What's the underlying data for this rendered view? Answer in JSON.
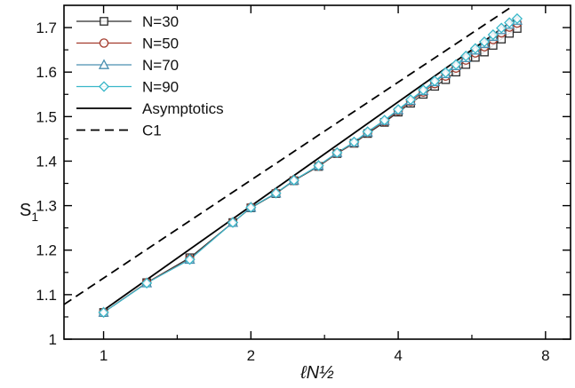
{
  "chart_data": {
    "type": "line",
    "x_scale": "log",
    "x_ticks_major": [
      1,
      2,
      4,
      8
    ],
    "x_ticks_minor": [
      1.414,
      2.828,
      5.657
    ],
    "x_tick_labels": [
      "1",
      "2",
      "4",
      "8"
    ],
    "xlim": [
      0.83,
      9.0
    ],
    "ylim": [
      1.0,
      1.75
    ],
    "y_ticks": [
      1.0,
      1.1,
      1.2,
      1.3,
      1.4,
      1.5,
      1.6,
      1.7
    ],
    "y_tick_labels": [
      "1",
      "1.1",
      "1.2",
      "1.3",
      "1.4",
      "1.5",
      "1.6",
      "1.7"
    ],
    "xlabel": "ℓN½",
    "ylabel_main": "S",
    "ylabel_sub": "1",
    "grid": false,
    "legend_position": "top-left",
    "x": [
      1.0,
      1.225,
      1.5,
      1.837,
      2.0,
      2.25,
      2.449,
      2.75,
      3.0,
      3.25,
      3.464,
      3.75,
      4.0,
      4.24,
      4.5,
      4.75,
      5.0,
      5.25,
      5.5,
      5.75,
      6.0,
      6.25,
      6.5,
      6.75,
      7.0
    ],
    "series": [
      {
        "name": "N=30",
        "marker": "square",
        "color": "#2b2b2b",
        "values": [
          1.06,
          1.127,
          1.183,
          1.262,
          1.295,
          1.327,
          1.356,
          1.388,
          1.417,
          1.44,
          1.462,
          1.487,
          1.51,
          1.53,
          1.55,
          1.568,
          1.583,
          1.6,
          1.617,
          1.633,
          1.645,
          1.66,
          1.674,
          1.687,
          1.698
        ]
      },
      {
        "name": "N=50",
        "marker": "circle",
        "color": "#a33a2c",
        "values": [
          1.06,
          1.127,
          1.18,
          1.262,
          1.296,
          1.328,
          1.357,
          1.389,
          1.418,
          1.441,
          1.464,
          1.489,
          1.513,
          1.534,
          1.555,
          1.574,
          1.591,
          1.609,
          1.627,
          1.643,
          1.657,
          1.673,
          1.688,
          1.701,
          1.71
        ]
      },
      {
        "name": "N=70",
        "marker": "triangle",
        "color": "#4a8fb0",
        "values": [
          1.06,
          1.126,
          1.179,
          1.262,
          1.296,
          1.328,
          1.357,
          1.39,
          1.419,
          1.442,
          1.465,
          1.491,
          1.515,
          1.536,
          1.558,
          1.578,
          1.596,
          1.614,
          1.632,
          1.649,
          1.664,
          1.68,
          1.695,
          1.707,
          1.716
        ]
      },
      {
        "name": "N=90",
        "marker": "diamond",
        "color": "#39b7c9",
        "values": [
          1.06,
          1.126,
          1.179,
          1.262,
          1.296,
          1.328,
          1.357,
          1.39,
          1.419,
          1.443,
          1.466,
          1.492,
          1.516,
          1.538,
          1.56,
          1.58,
          1.599,
          1.617,
          1.636,
          1.653,
          1.668,
          1.684,
          1.699,
          1.711,
          1.72
        ]
      },
      {
        "name": "Asymptotics",
        "style": "solid",
        "color": "#000000",
        "x": [
          1.0,
          7.0
        ],
        "values": [
          1.065,
          1.722
        ]
      },
      {
        "name": "C1",
        "style": "dashed",
        "color": "#000000",
        "x": [
          0.83,
          7.0
        ],
        "values": [
          1.078,
          1.755
        ]
      }
    ]
  }
}
